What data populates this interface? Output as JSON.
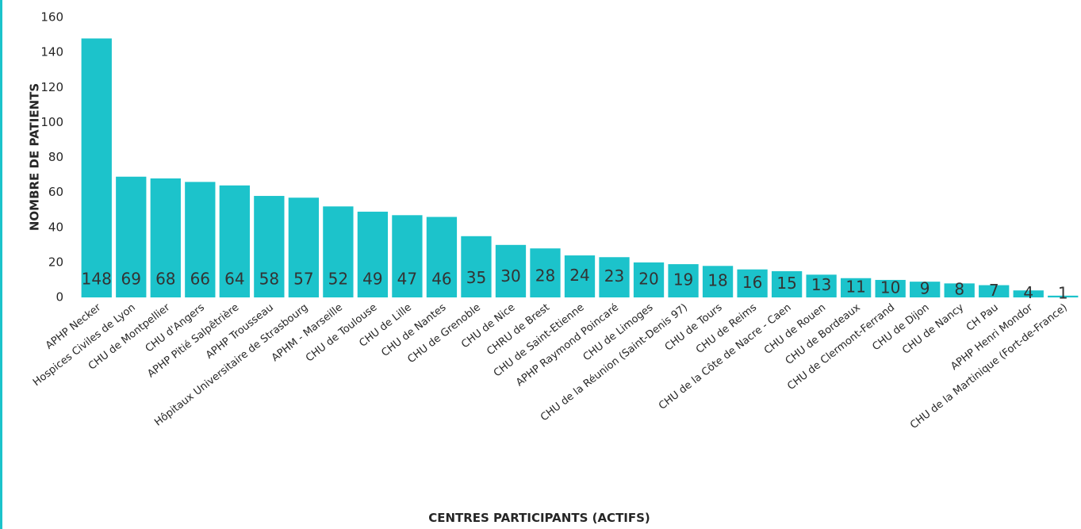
{
  "chart_data": {
    "type": "bar",
    "x_label": "CENTRES PARTICIPANTS (ACTIFS)",
    "y_label": "NOMBRE DE PATIENTS",
    "categories": [
      "APHP Necker",
      "Hospices Civiles de Lyon",
      "CHU de Montpellier",
      "CHU d'Angers",
      "APHP Pitié Salpêtrière",
      "APHP Trousseau",
      "Hôpitaux Universitaire de Strasbourg",
      "APHM - Marseille",
      "CHU de Toulouse",
      "CHU de Lille",
      "CHU de Nantes",
      "CHU de Grenoble",
      "CHU de Nice",
      "CHRU de Brest",
      "CHU de Saint-Etienne",
      "APHP Raymond Poincaré",
      "CHU de Limoges",
      "CHU de la Réunion (Saint-Denis 97)",
      "CHU de Tours",
      "CHU de Reims",
      "CHU de la Côte de Nacre - Caen",
      "CHU de Rouen",
      "CHU de Bordeaux",
      "CHU de Clermont-Ferrand",
      "CHU de Dijon",
      "CHU de Nancy",
      "CH Pau",
      "APHP Henri Mondor",
      "CHU de la Martinique (Fort-de-France)"
    ],
    "values": [
      148,
      69,
      68,
      66,
      64,
      58,
      57,
      52,
      49,
      47,
      46,
      35,
      30,
      28,
      24,
      23,
      20,
      19,
      18,
      16,
      15,
      13,
      11,
      10,
      9,
      8,
      7,
      4,
      1
    ],
    "color": "#1cc3cb",
    "ylim": [
      0,
      160
    ],
    "yticks": [
      0,
      20,
      40,
      60,
      80,
      100,
      120,
      140,
      160
    ],
    "grid": false
  }
}
